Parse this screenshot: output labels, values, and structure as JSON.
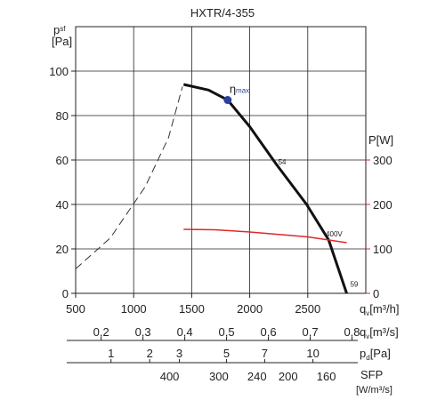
{
  "chart_data": {
    "type": "line",
    "title": "HXTR/4-355",
    "ylabel": {
      "symbol": "p",
      "subscript": "sf",
      "unit": "[Pa]"
    },
    "y2label": {
      "symbol": "P",
      "unit": "[W]",
      "color": "#e0262a"
    },
    "xlabel": {
      "symbol": "q",
      "subscript": "v",
      "unit": "[m³/h]"
    },
    "xlim": [
      500,
      3000
    ],
    "xticks": [
      500,
      1000,
      1500,
      2000,
      2500
    ],
    "ylim": [
      0,
      120
    ],
    "yticks": [
      0,
      20,
      40,
      60,
      80,
      100
    ],
    "y2lim": [
      0,
      600
    ],
    "y2ticks": [
      0,
      100,
      200,
      300
    ],
    "grid": true,
    "series": [
      {
        "color": "#333333",
        "style": "dashed",
        "x": [
          500,
          800,
          1100,
          1300,
          1420
        ],
        "values": [
          11,
          25,
          48,
          70,
          93
        ]
      },
      {
        "color": "#111111",
        "style": "solid",
        "x": [
          1430,
          1645,
          1810,
          2000,
          2230,
          2490,
          2680,
          2835
        ],
        "values": [
          94,
          91.5,
          87,
          75,
          58,
          40,
          24,
          0
        ]
      },
      {
        "color": "#e0262a",
        "style": "solid",
        "axis": "y2",
        "x": [
          1430,
          1700,
          2000,
          2500,
          2835
        ],
        "values": [
          144,
          143,
          138,
          127,
          114
        ]
      }
    ],
    "markers": [
      {
        "label": "η",
        "sublabel": "max",
        "x": 1810,
        "y": 87,
        "color": "#2b3fa0"
      }
    ],
    "annotations": [
      {
        "text": "54",
        "x": 2230,
        "y": 58
      },
      {
        "text": "400V",
        "x": 2640,
        "y": 128,
        "axis": "y2",
        "color": "#e0262a"
      },
      {
        "text": "59",
        "x": 2850,
        "y": 3
      }
    ],
    "secondary_axes": [
      {
        "label": {
          "symbol": "q",
          "subscript": "v",
          "unit": "[m³/s]"
        },
        "scale": "linear",
        "xlim": [
          0.139,
          0.833
        ],
        "ticks": [
          {
            "value": 0.2,
            "label": "0,2"
          },
          {
            "value": 0.3,
            "label": "0,3"
          },
          {
            "value": 0.4,
            "label": "0,4"
          },
          {
            "value": 0.5,
            "label": "0,5"
          },
          {
            "value": 0.6,
            "label": "0,6"
          },
          {
            "value": 0.7,
            "label": "0,7"
          },
          {
            "value": 0.8,
            "label": "0,8"
          }
        ]
      },
      {
        "label": {
          "symbol": "p",
          "subscript": "d",
          "unit": "[Pa]"
        },
        "scale": "sqrt",
        "xlim": [
          0.386,
          13.9
        ],
        "ticks": [
          1,
          2,
          3,
          5,
          7,
          10
        ]
      },
      {
        "label": {
          "symbol": "SFP",
          "unit": "[W/m³/s]"
        },
        "scale": "log",
        "xlim": [
          693,
          127
        ],
        "ticks": [
          400,
          300,
          240,
          200,
          160
        ]
      }
    ]
  }
}
